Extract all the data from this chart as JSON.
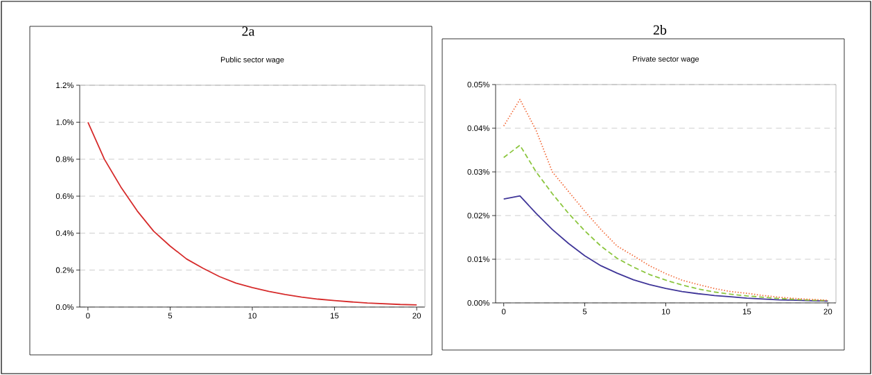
{
  "chart_data": [
    {
      "type": "line",
      "title": "2a",
      "subtitle": "Public sector wage",
      "x": [
        0,
        1,
        2,
        3,
        4,
        5,
        6,
        7,
        8,
        9,
        10,
        11,
        12,
        13,
        14,
        15,
        16,
        17,
        18,
        19,
        20
      ],
      "xlim": [
        -0.5,
        20.5
      ],
      "xticks": [
        0,
        5,
        10,
        15,
        20
      ],
      "ylim": [
        0,
        1.2
      ],
      "yticks": [
        {
          "value": 0,
          "label": "0.0%"
        },
        {
          "value": 0.2,
          "label": "0.2%"
        },
        {
          "value": 0.4,
          "label": "0.4%"
        },
        {
          "value": 0.6,
          "label": "0.6%"
        },
        {
          "value": 0.8,
          "label": "0.8%"
        },
        {
          "value": 1.0,
          "label": "1.0%"
        },
        {
          "value": 1.2,
          "label": "1.2%"
        }
      ],
      "grid": "y",
      "series": [
        {
          "color": "#d62b2b",
          "line_style": "solid",
          "values": [
            1.0,
            0.8,
            0.65,
            0.52,
            0.41,
            0.33,
            0.26,
            0.21,
            0.165,
            0.13,
            0.105,
            0.085,
            0.068,
            0.054,
            0.043,
            0.035,
            0.028,
            0.022,
            0.018,
            0.014,
            0.012
          ]
        }
      ]
    },
    {
      "type": "line",
      "title": "2b",
      "subtitle": "Private sector wage",
      "x": [
        0,
        1,
        2,
        3,
        4,
        5,
        6,
        7,
        8,
        9,
        10,
        11,
        12,
        13,
        14,
        15,
        16,
        17,
        18,
        19,
        20
      ],
      "xlim": [
        -0.5,
        20.5
      ],
      "xticks": [
        0,
        5,
        10,
        15,
        20
      ],
      "ylim": [
        0,
        0.05
      ],
      "yticks": [
        {
          "value": 0,
          "label": "0.00%"
        },
        {
          "value": 0.01,
          "label": "0.01%"
        },
        {
          "value": 0.02,
          "label": "0.02%"
        },
        {
          "value": 0.03,
          "label": "0.03%"
        },
        {
          "value": 0.04,
          "label": "0.04%"
        },
        {
          "value": 0.05,
          "label": "0.05%"
        }
      ],
      "grid": "y",
      "series": [
        {
          "color": "#3f3598",
          "line_style": "solid",
          "values": [
            0.0238,
            0.0245,
            0.0205,
            0.0168,
            0.0136,
            0.0108,
            0.0085,
            0.0068,
            0.0053,
            0.0042,
            0.0033,
            0.0026,
            0.0021,
            0.0017,
            0.0014,
            0.0011,
            0.0009,
            0.0007,
            0.0006,
            0.0005,
            0.0004
          ]
        },
        {
          "color": "#8cc63f",
          "line_style": "dashed",
          "values": [
            0.0333,
            0.0361,
            0.03,
            0.025,
            0.0205,
            0.0165,
            0.013,
            0.0102,
            0.0082,
            0.0065,
            0.0052,
            0.0041,
            0.0032,
            0.0025,
            0.002,
            0.0016,
            0.0013,
            0.001,
            0.0008,
            0.0006,
            0.0005
          ]
        },
        {
          "color": "#f26b3a",
          "line_style": "dotted",
          "values": [
            0.0405,
            0.0466,
            0.0395,
            0.03,
            0.0255,
            0.021,
            0.0168,
            0.013,
            0.0108,
            0.0085,
            0.0067,
            0.0052,
            0.0042,
            0.0033,
            0.0026,
            0.0022,
            0.0017,
            0.0013,
            0.001,
            0.0008,
            0.0006
          ]
        }
      ]
    }
  ]
}
